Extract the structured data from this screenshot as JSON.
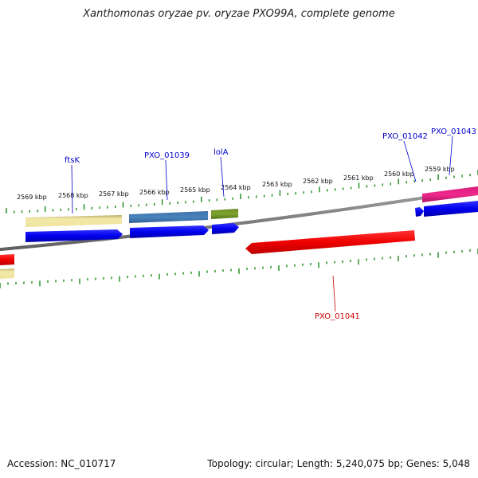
{
  "title": "Xanthomonas oryzae pv. oryzae PXO99A, complete genome",
  "footer": {
    "accession": "Accession: NC_010717",
    "summary": "Topology: circular; Length: 5,240,075 bp; Genes: 5,048"
  },
  "colors": {
    "tick": "#1a8a1a",
    "label_forward": "#0000cc",
    "label_reverse": "#cc0000",
    "backbone": "#808080"
  },
  "scale": {
    "ticks": [
      {
        "label": "2569 kbp"
      },
      {
        "label": "2568 kbp"
      },
      {
        "label": "2567 kbp"
      },
      {
        "label": "2566 kbp"
      },
      {
        "label": "2565 kbp"
      },
      {
        "label": "2564 kbp"
      },
      {
        "label": "2563 kbp"
      },
      {
        "label": "2562 kbp"
      },
      {
        "label": "2561 kbp"
      },
      {
        "label": "2560 kbp"
      },
      {
        "label": "2559 kbp"
      }
    ]
  },
  "genes": [
    {
      "name": "ftsK",
      "strand": "+",
      "color": "#0000cc"
    },
    {
      "name": "PXO_01039",
      "strand": "+",
      "color": "#0000cc"
    },
    {
      "name": "lolA",
      "strand": "+",
      "color": "#0000cc"
    },
    {
      "name": "PXO_01041",
      "strand": "-",
      "color": "#cc0000"
    },
    {
      "name": "PXO_01042",
      "strand": "+",
      "color": "#0000cc"
    },
    {
      "name": "PXO_01043",
      "strand": "+",
      "color": "#0000cc"
    }
  ]
}
